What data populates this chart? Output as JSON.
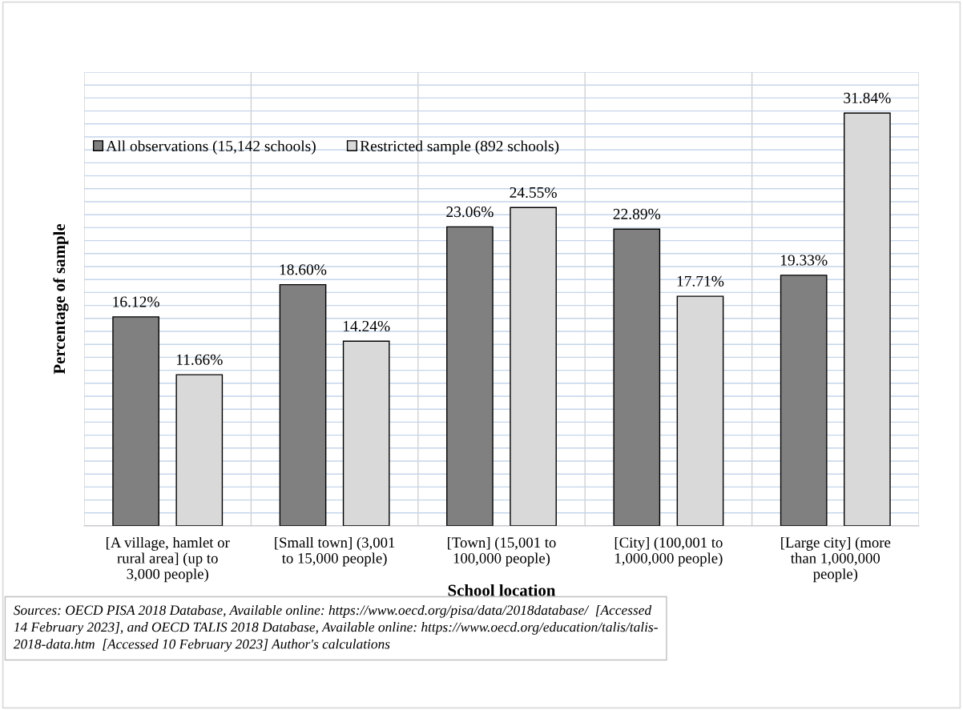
{
  "chart_data": {
    "type": "bar",
    "xlabel": "School location",
    "ylabel": "Percentage of sample",
    "categories": [
      "[A village, hamlet or\nrural area] (up to\n3,000 people)",
      "[Small town] (3,001\nto 15,000 people)",
      "[Town] (15,001 to\n100,000 people)",
      "[City] (100,001 to\n1,000,000 people)",
      "[Large city] (more\nthan 1,000,000\npeople)"
    ],
    "series": [
      {
        "name": "All observations (15,142 schools)",
        "color": "#808080",
        "values": [
          16.12,
          18.6,
          23.06,
          22.89,
          19.33
        ],
        "value_labels": [
          "16.12%",
          "18.60%",
          "23.06%",
          "22.89%",
          "19.33%"
        ]
      },
      {
        "name": "Restricted sample (892 schools)",
        "color": "#d9d9d9",
        "values": [
          11.66,
          14.24,
          24.55,
          17.71,
          31.84
        ],
        "value_labels": [
          "11.66%",
          "14.24%",
          "24.55%",
          "17.71%",
          "31.84%"
        ]
      }
    ],
    "ylim": [
      0,
      35
    ],
    "yticks": [
      {
        "value": 0,
        "label": null
      },
      {
        "value": 1,
        "label": null
      },
      {
        "value": 2,
        "label": null
      },
      {
        "value": 3,
        "label": null
      },
      {
        "value": 4,
        "label": null
      },
      {
        "value": 5,
        "label": null
      },
      {
        "value": 6,
        "label": null
      },
      {
        "value": 7,
        "label": null
      },
      {
        "value": 8,
        "label": null
      },
      {
        "value": 9,
        "label": null
      },
      {
        "value": 10,
        "label": null
      },
      {
        "value": 11,
        "label": null
      },
      {
        "value": 12,
        "label": null
      },
      {
        "value": 13,
        "label": null
      },
      {
        "value": 14,
        "label": null
      },
      {
        "value": 15,
        "label": null
      },
      {
        "value": 16,
        "label": null
      },
      {
        "value": 17,
        "label": null
      },
      {
        "value": 18,
        "label": null
      },
      {
        "value": 19,
        "label": null
      },
      {
        "value": 20,
        "label": null
      },
      {
        "value": 21,
        "label": null
      },
      {
        "value": 22,
        "label": null
      },
      {
        "value": 23,
        "label": null
      },
      {
        "value": 24,
        "label": null
      },
      {
        "value": 25,
        "label": null
      },
      {
        "value": 26,
        "label": null
      },
      {
        "value": 27,
        "label": null
      },
      {
        "value": 28,
        "label": null
      },
      {
        "value": 29,
        "label": null
      },
      {
        "value": 30,
        "label": null
      },
      {
        "value": 31,
        "label": null
      },
      {
        "value": 32,
        "label": null
      },
      {
        "value": 33,
        "label": null
      },
      {
        "value": 34,
        "label": null
      },
      {
        "value": 35,
        "label": null
      }
    ],
    "tick_labels": "x",
    "grid": true,
    "legend": "top",
    "annotations": [
      "Sources: OECD PISA 2018 Database, Available online: https://www.oecd.org/pisa/data/2018database/  [Accessed\n14 February 2023], and OECD TALIS 2018 Database, Available online: https://www.oecd.org/education/talis/talis-\n2018-data.htm  [Accessed 10 February 2023] Author's calculations"
    ]
  }
}
